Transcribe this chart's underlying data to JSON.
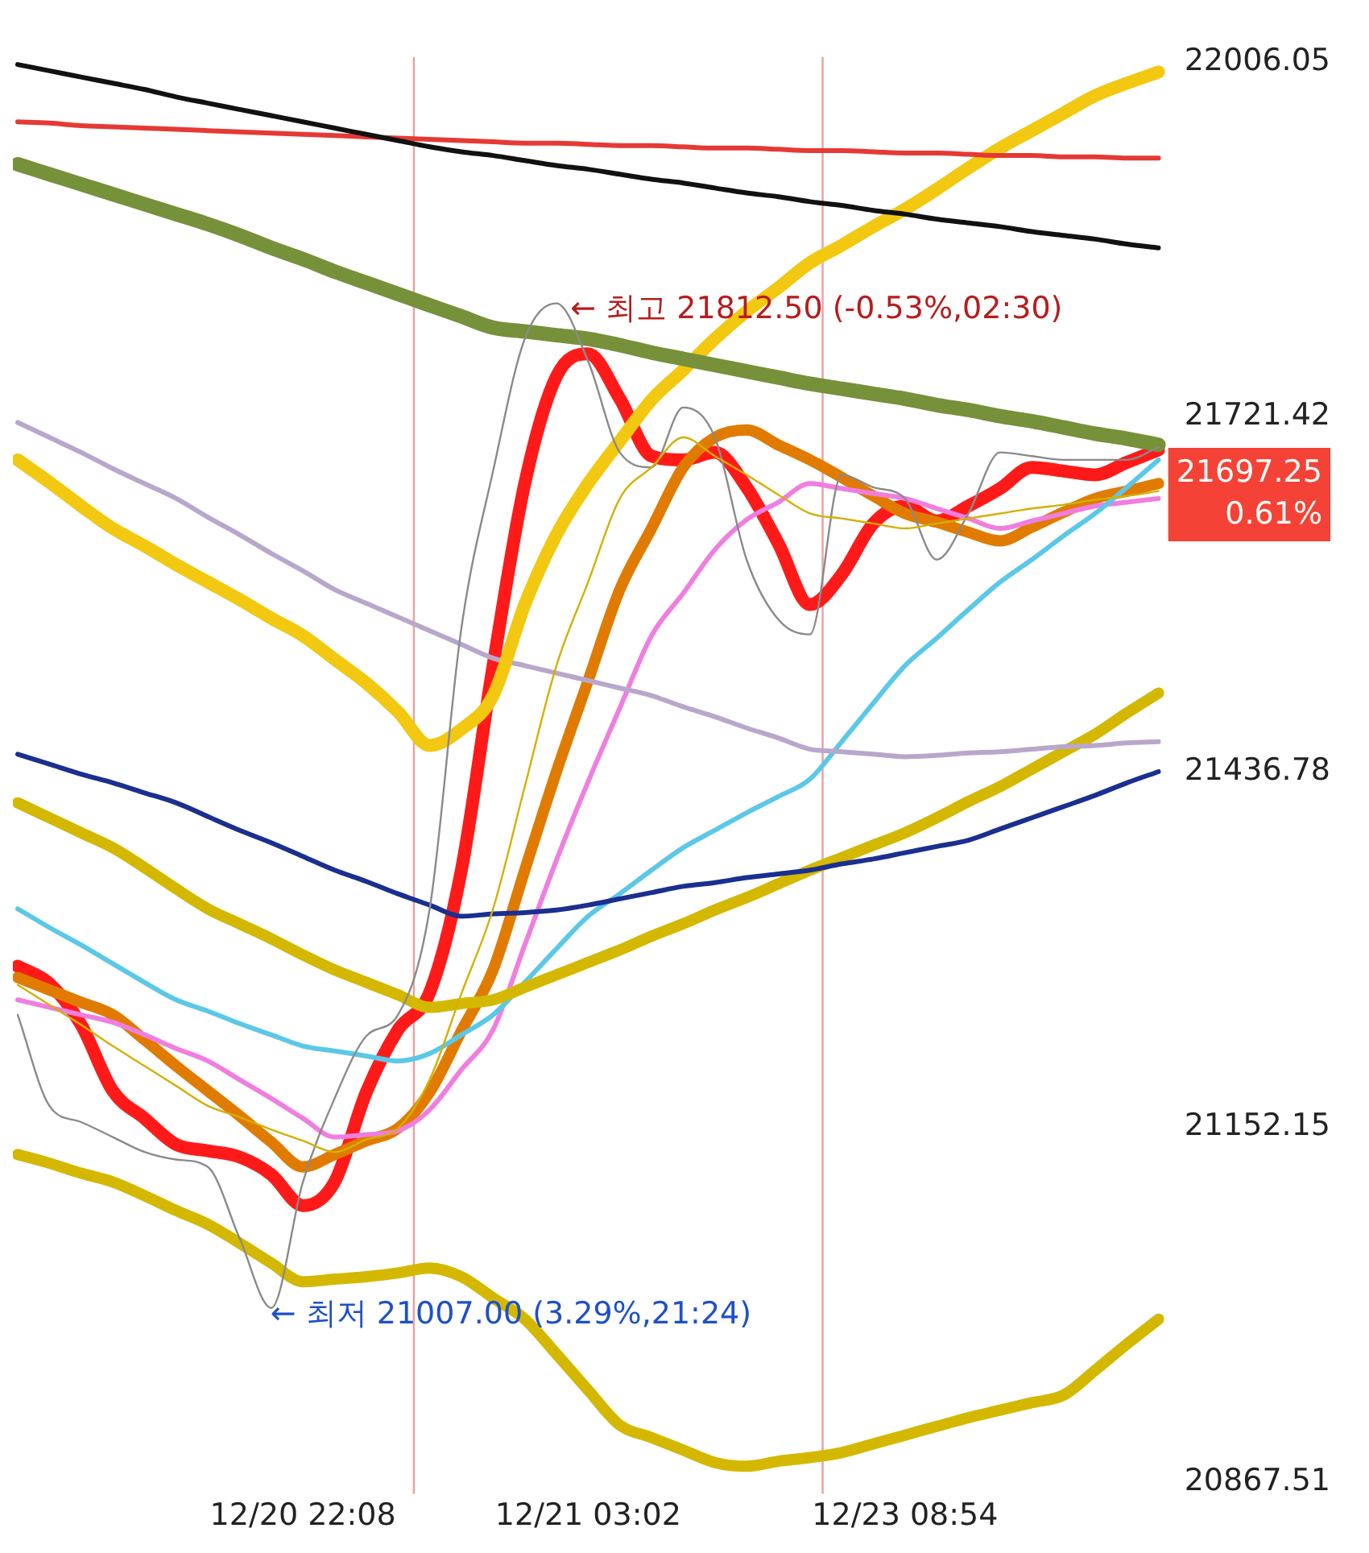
{
  "chart_data": {
    "type": "line",
    "categories": [
      null,
      null,
      null,
      null,
      null,
      null,
      null,
      null,
      null,
      "12/20 22:08",
      null,
      null,
      null,
      null,
      null,
      null,
      null,
      null,
      "12/21 03:02",
      null,
      null,
      null,
      null,
      null,
      null,
      null,
      null,
      null,
      "12/23 08:54",
      null,
      null,
      null,
      null,
      null,
      null,
      null,
      null
    ],
    "ylim": [
      20858,
      22010
    ],
    "yticks": [
      22006.05,
      21721.42,
      21436.78,
      21152.15,
      20867.51
    ],
    "grid": false,
    "legend": false,
    "marker": "none",
    "line_style": "solid",
    "annotations": [
      "← 최고 21812.50 (-0.53%,02:30)",
      "← 최저 21007.00 (3.29%,21:24)",
      "21697.25\n0.61%"
    ],
    "series": [
      {
        "color": "#111111",
        "values": [
          22004,
          21999,
          21994,
          21989,
          21984,
          21978,
          21973,
          21968,
          21963,
          21958,
          21953,
          21948,
          21943,
          21938,
          21934,
          21931,
          21927,
          21923,
          21920,
          21916,
          21912,
          21909,
          21905,
          21901,
          21898,
          21894,
          21891,
          21887,
          21884,
          21880,
          21877,
          21874,
          21870,
          21867,
          21864,
          21860,
          21857
        ]
      },
      {
        "color": "#e53935",
        "values": [
          21958,
          21957,
          21955,
          21954,
          21953,
          21952,
          21951,
          21950,
          21949,
          21948,
          21947,
          21946,
          21945,
          21944,
          21943,
          21942,
          21941,
          21941,
          21940,
          21939,
          21939,
          21938,
          21937,
          21937,
          21936,
          21935,
          21935,
          21934,
          21933,
          21933,
          21932,
          21931,
          21931,
          21930,
          21930,
          21929,
          21929
        ]
      },
      {
        "color": "#76913a",
        "values": [
          21924,
          21916,
          21908,
          21900,
          21892,
          21884,
          21876,
          21867,
          21857,
          21848,
          21838,
          21829,
          21820,
          21811,
          21802,
          21793,
          21790,
          21787,
          21784,
          21779,
          21773,
          21768,
          21763,
          21758,
          21753,
          21748,
          21744,
          21740,
          21736,
          21731,
          21727,
          21722,
          21718,
          21713,
          21708,
          21704,
          21699
        ]
      },
      {
        "color": "#f2c811",
        "values": [
          21687,
          21669,
          21650,
          21632,
          21618,
          21603,
          21589,
          21575,
          21560,
          21546,
          21527,
          21508,
          21485,
          21458,
          21471,
          21498,
          21571,
          21627,
          21668,
          21702,
          21735,
          21759,
          21784,
          21806,
          21825,
          21845,
          21859,
          21874,
          21888,
          21904,
          21921,
          21937,
          21951,
          21965,
          21979,
          21989,
          21998
        ]
      },
      {
        "color": "#b9a7cb",
        "values": [
          21717,
          21705,
          21693,
          21680,
          21668,
          21656,
          21641,
          21627,
          21612,
          21598,
          21583,
          21572,
          21561,
          21550,
          21539,
          21528,
          21522,
          21516,
          21510,
          21504,
          21498,
          21489,
          21481,
          21472,
          21464,
          21455,
          21453,
          21451,
          21449,
          21450,
          21452,
          21453,
          21455,
          21457,
          21458,
          21460,
          21461
        ]
      },
      {
        "color": "#1a2f8f",
        "values": [
          21451,
          21443,
          21435,
          21428,
          21420,
          21412,
          21401,
          21390,
          21380,
          21369,
          21358,
          21349,
          21339,
          21330,
          21321,
          21323,
          21324,
          21326,
          21330,
          21335,
          21340,
          21345,
          21348,
          21352,
          21355,
          21358,
          21363,
          21367,
          21372,
          21377,
          21382,
          21391,
          21400,
          21409,
          21418,
          21428,
          21437
        ]
      },
      {
        "color": "#d4b800",
        "values": [
          21412,
          21400,
          21388,
          21376,
          21360,
          21343,
          21327,
          21315,
          21303,
          21290,
          21278,
          21268,
          21258,
          21248,
          21251,
          21254,
          21264,
          21274,
          21284,
          21294,
          21305,
          21315,
          21326,
          21336,
          21347,
          21358,
          21368,
          21378,
          21388,
          21400,
          21413,
          21425,
          21439,
          21453,
          21467,
          21484,
          21500
        ]
      },
      {
        "color": "#d4b800",
        "values": [
          21130,
          21123,
          21115,
          21108,
          21097,
          21085,
          21074,
          21059,
          21043,
          21028,
          21030,
          21032,
          21035,
          21039,
          21032,
          21015,
          20998,
          20970,
          20941,
          20913,
          20903,
          20893,
          20883,
          20880,
          20884,
          20887,
          20891,
          20898,
          20905,
          20912,
          20919,
          20925,
          20931,
          20937,
          20957,
          20978,
          20998
        ]
      },
      {
        "color": "#5bc8e8",
        "values": [
          21327,
          21312,
          21298,
          21283,
          21268,
          21254,
          21245,
          21235,
          21226,
          21217,
          21213,
          21209,
          21205,
          21211,
          21226,
          21242,
          21268,
          21295,
          21321,
          21339,
          21358,
          21376,
          21390,
          21404,
          21417,
          21431,
          21461,
          21492,
          21522,
          21544,
          21567,
          21589,
          21607,
          21626,
          21644,
          21665,
          21687
        ]
      },
      {
        "color": "#f07ee0",
        "values": [
          21254,
          21248,
          21242,
          21236,
          21226,
          21215,
          21205,
          21190,
          21175,
          21159,
          21144,
          21146,
          21149,
          21166,
          21198,
          21230,
          21298,
          21366,
          21429,
          21488,
          21546,
          21580,
          21615,
          21639,
          21653,
          21668,
          21664,
          21660,
          21656,
          21648,
          21640,
          21632,
          21638,
          21644,
          21650,
          21653,
          21656
        ]
      },
      {
        "color": "#d4b000",
        "values": [
          21266,
          21250,
          21234,
          21217,
          21201,
          21185,
          21169,
          21160,
          21150,
          21141,
          21132,
          21142,
          21151,
          21190,
          21259,
          21327,
          21425,
          21522,
          21589,
          21656,
          21681,
          21705,
          21690,
          21675,
          21659,
          21644,
          21640,
          21636,
          21632,
          21636,
          21640,
          21644,
          21648,
          21651,
          21655,
          21658,
          21662
        ]
      },
      {
        "color": "#e07b00",
        "values": [
          21272,
          21262,
          21252,
          21242,
          21222,
          21201,
          21181,
          21161,
          21140,
          21120,
          21130,
          21141,
          21151,
          21180,
          21229,
          21278,
          21358,
          21437,
          21510,
          21583,
          21632,
          21681,
          21705,
          21711,
          21699,
          21687,
          21673,
          21658,
          21644,
          21637,
          21629,
          21622,
          21633,
          21645,
          21656,
          21662,
          21668
        ]
      },
      {
        "color": "#8a8a8a",
        "values": [
          21242,
          21169,
          21156,
          21144,
          21132,
          21126,
          21120,
          21063,
          21007,
          21108,
          21175,
          21225,
          21242,
          21327,
          21552,
          21678,
          21784,
          21812.5,
          21766,
          21693,
          21681,
          21729,
          21705,
          21607,
          21559,
          21547,
          21675,
          21665,
          21656,
          21607,
          21644,
          21693,
          21690,
          21687,
          21687,
          21687,
          21697.25
        ]
      },
      {
        "color": "#ff1a1a",
        "values": [
          21281,
          21267,
          21234,
          21181,
          21159,
          21138,
          21133,
          21128,
          21114,
          21089,
          21108,
          21180,
          21230,
          21260,
          21358,
          21522,
          21668,
          21754,
          21772,
          21736,
          21690,
          21687,
          21693,
          21665,
          21620,
          21571,
          21595,
          21636,
          21650,
          21638,
          21650,
          21664,
          21681,
          21678,
          21675,
          21685,
          21695
        ]
      }
    ]
  }
}
